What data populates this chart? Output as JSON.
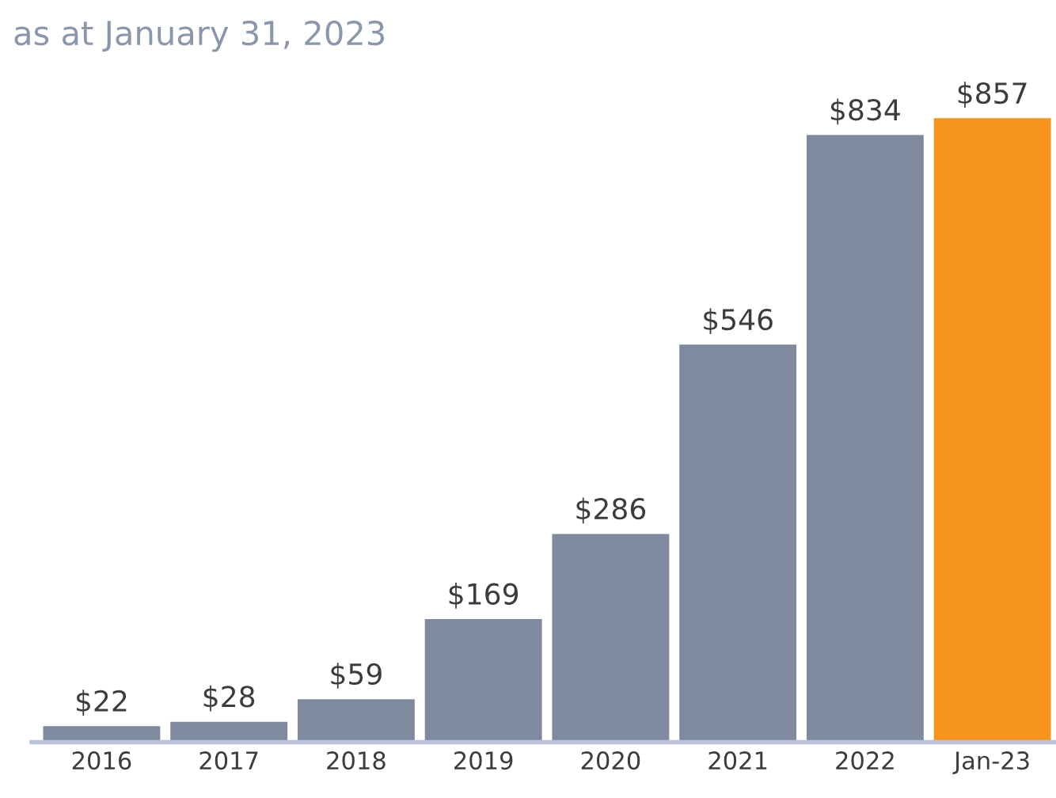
{
  "chart_data": {
    "type": "bar",
    "title": "as at January 31, 2023",
    "categories": [
      "2016",
      "2017",
      "2018",
      "2019",
      "2020",
      "2021",
      "2022",
      "Jan-23"
    ],
    "values": [
      22,
      28,
      59,
      169,
      286,
      546,
      834,
      857
    ],
    "colors": [
      "#7f8a9e",
      "#7f8a9e",
      "#7f8a9e",
      "#7f8a9e",
      "#7f8a9e",
      "#7f8a9e",
      "#7f8a9e",
      "#f7941d"
    ],
    "value_labels": [
      "$22",
      "$28",
      "$59",
      "$169",
      "$286",
      "$546",
      "$834",
      "$857"
    ],
    "grid": false,
    "legend": false
  }
}
